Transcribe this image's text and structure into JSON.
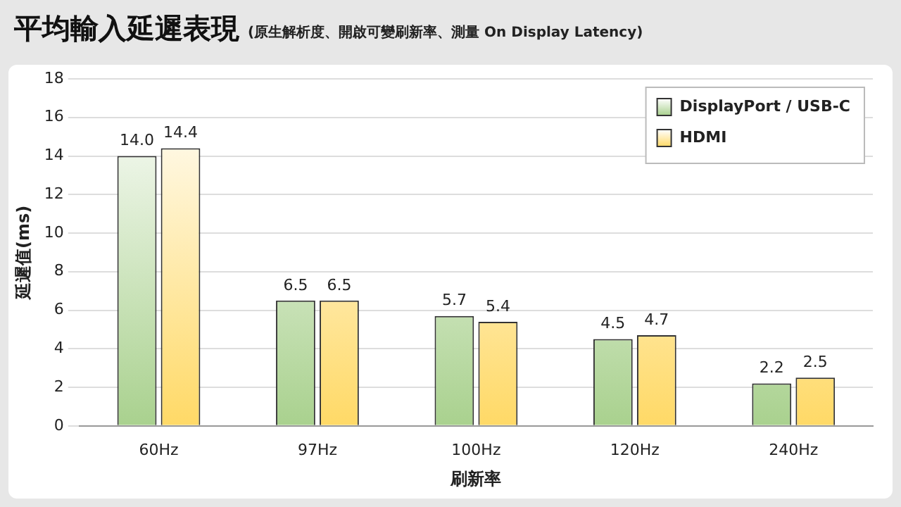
{
  "chart_data": {
    "type": "bar",
    "title": "平均輸入延遲表現",
    "subtitle": "(原生解析度、開啟可變刷新率、測量 On Display Latency)",
    "xlabel": "刷新率",
    "ylabel": "延遲值(ms)",
    "categories": [
      "60Hz",
      "97Hz",
      "100Hz",
      "120Hz",
      "240Hz"
    ],
    "series": [
      {
        "name": "DisplayPort / USB-C",
        "color": "#a9d18e",
        "values": [
          14.0,
          6.5,
          5.7,
          4.5,
          2.2
        ],
        "value_labels": [
          "14.0",
          "6.5",
          "5.7",
          "4.5",
          "2.2"
        ]
      },
      {
        "name": "HDMI",
        "color": "#ffd966",
        "values": [
          14.4,
          6.5,
          5.4,
          4.7,
          2.5
        ],
        "value_labels": [
          "14.4",
          "6.5",
          "5.4",
          "4.7",
          "2.5"
        ]
      }
    ],
    "ylim": [
      0,
      18
    ],
    "yticks": [
      0,
      2,
      4,
      6,
      8,
      10,
      12,
      14,
      16,
      18
    ],
    "grid": "y",
    "legend": "top right"
  }
}
